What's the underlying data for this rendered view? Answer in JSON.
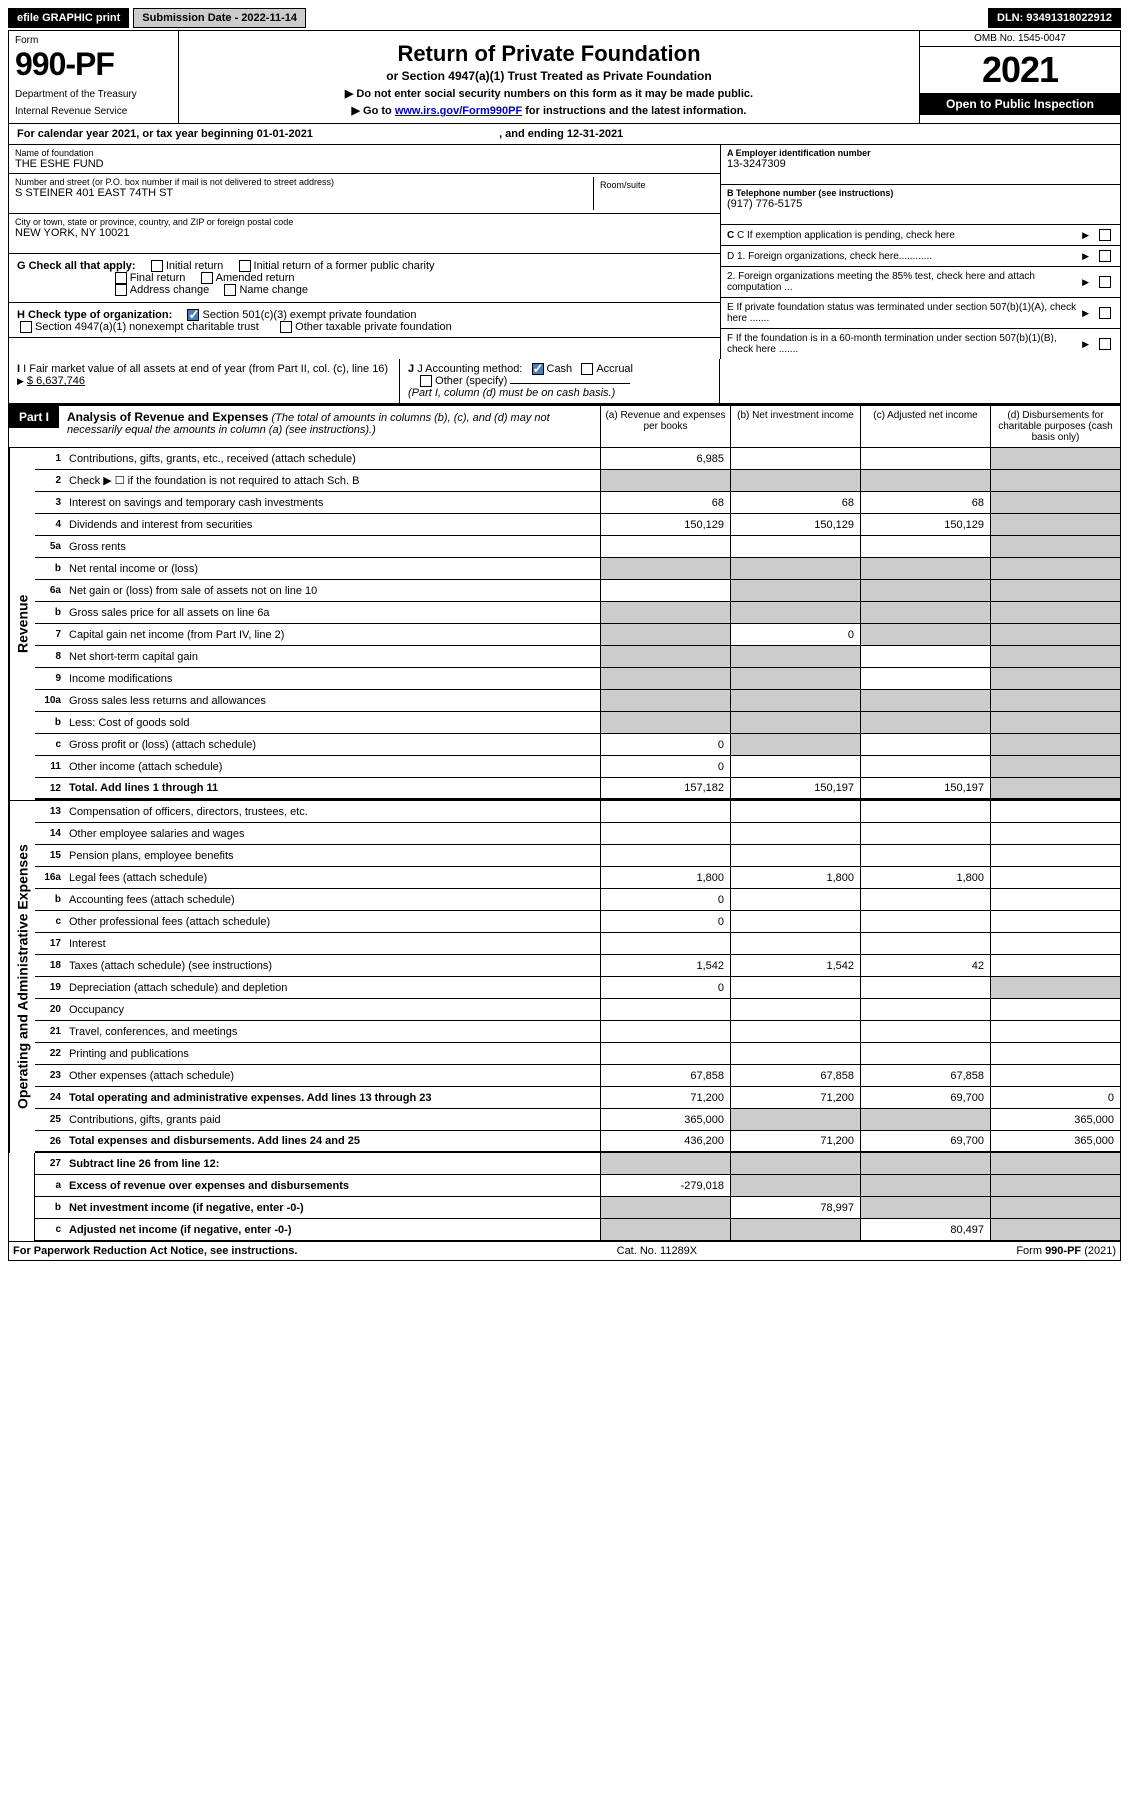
{
  "topbar": {
    "efile": "efile GRAPHIC print",
    "submission_label": "Submission Date - 2022-11-14",
    "dln": "DLN: 93491318022912"
  },
  "header": {
    "form_label": "Form",
    "form_number": "990-PF",
    "dept1": "Department of the Treasury",
    "dept2": "Internal Revenue Service",
    "title": "Return of Private Foundation",
    "subtitle": "or Section 4947(a)(1) Trust Treated as Private Foundation",
    "note1": "▶ Do not enter social security numbers on this form as it may be made public.",
    "note2_pre": "▶ Go to ",
    "note2_link": "www.irs.gov/Form990PF",
    "note2_post": " for instructions and the latest information.",
    "omb": "OMB No. 1545-0047",
    "year": "2021",
    "open_public": "Open to Public Inspection"
  },
  "calendar": {
    "pre": "For calendar year 2021, or tax year beginning ",
    "begin": "01-01-2021",
    "mid": ", and ending ",
    "end": "12-31-2021"
  },
  "entity": {
    "name_label": "Name of foundation",
    "name": "THE ESHE FUND",
    "addr_label": "Number and street (or P.O. box number if mail is not delivered to street address)",
    "addr": "S STEINER 401 EAST 74TH ST",
    "room_label": "Room/suite",
    "city_label": "City or town, state or province, country, and ZIP or foreign postal code",
    "city": "NEW YORK, NY  10021",
    "ein_label": "A Employer identification number",
    "ein": "13-3247309",
    "phone_label": "B Telephone number (see instructions)",
    "phone": "(917) 776-5175",
    "c_label": "C If exemption application is pending, check here",
    "d1": "D 1. Foreign organizations, check here............",
    "d2": "2. Foreign organizations meeting the 85% test, check here and attach computation ...",
    "e_label": "E If private foundation status was terminated under section 507(b)(1)(A), check here .......",
    "f_label": "F If the foundation is in a 60-month termination under section 507(b)(1)(B), check here .......",
    "g_label": "G Check all that apply:",
    "g_opts": [
      "Initial return",
      "Initial return of a former public charity",
      "Final return",
      "Amended return",
      "Address change",
      "Name change"
    ],
    "h_label": "H Check type of organization:",
    "h_opt1": "Section 501(c)(3) exempt private foundation",
    "h_opt2": "Section 4947(a)(1) nonexempt charitable trust",
    "h_opt3": "Other taxable private foundation",
    "i_label": "I Fair market value of all assets at end of year (from Part II, col. (c), line 16)",
    "i_val": "$  6,637,746",
    "j_label": "J Accounting method:",
    "j_cash": "Cash",
    "j_accrual": "Accrual",
    "j_other": "Other (specify)",
    "j_note": "(Part I, column (d) must be on cash basis.)"
  },
  "part1": {
    "tag": "Part I",
    "title": "Analysis of Revenue and Expenses",
    "title_note": "(The total of amounts in columns (b), (c), and (d) may not necessarily equal the amounts in column (a) (see instructions).)",
    "col_a": "(a) Revenue and expenses per books",
    "col_b": "(b) Net investment income",
    "col_c": "(c) Adjusted net income",
    "col_d": "(d) Disbursements for charitable purposes (cash basis only)",
    "revenue_label": "Revenue",
    "expenses_label": "Operating and Administrative Expenses"
  },
  "rows": [
    {
      "ln": "1",
      "desc": "Contributions, gifts, grants, etc., received (attach schedule)",
      "a": "6,985",
      "b": "",
      "c": "",
      "d": "grey"
    },
    {
      "ln": "2",
      "desc": "Check ▶ ☐ if the foundation is not required to attach Sch. B",
      "a": "grey",
      "b": "grey",
      "c": "grey",
      "d": "grey"
    },
    {
      "ln": "3",
      "desc": "Interest on savings and temporary cash investments",
      "a": "68",
      "b": "68",
      "c": "68",
      "d": "grey"
    },
    {
      "ln": "4",
      "desc": "Dividends and interest from securities",
      "a": "150,129",
      "b": "150,129",
      "c": "150,129",
      "d": "grey"
    },
    {
      "ln": "5a",
      "desc": "Gross rents",
      "a": "",
      "b": "",
      "c": "",
      "d": "grey"
    },
    {
      "ln": "b",
      "desc": "Net rental income or (loss)",
      "a": "grey",
      "b": "grey",
      "c": "grey",
      "d": "grey",
      "inline": true
    },
    {
      "ln": "6a",
      "desc": "Net gain or (loss) from sale of assets not on line 10",
      "a": "",
      "b": "grey",
      "c": "grey",
      "d": "grey"
    },
    {
      "ln": "b",
      "desc": "Gross sales price for all assets on line 6a",
      "a": "grey",
      "b": "grey",
      "c": "grey",
      "d": "grey",
      "inline": true
    },
    {
      "ln": "7",
      "desc": "Capital gain net income (from Part IV, line 2)",
      "a": "grey",
      "b": "0",
      "c": "grey",
      "d": "grey"
    },
    {
      "ln": "8",
      "desc": "Net short-term capital gain",
      "a": "grey",
      "b": "grey",
      "c": "",
      "d": "grey"
    },
    {
      "ln": "9",
      "desc": "Income modifications",
      "a": "grey",
      "b": "grey",
      "c": "",
      "d": "grey"
    },
    {
      "ln": "10a",
      "desc": "Gross sales less returns and allowances",
      "a": "grey",
      "b": "grey",
      "c": "grey",
      "d": "grey",
      "inline": true
    },
    {
      "ln": "b",
      "desc": "Less: Cost of goods sold",
      "a": "grey",
      "b": "grey",
      "c": "grey",
      "d": "grey",
      "inline": true
    },
    {
      "ln": "c",
      "desc": "Gross profit or (loss) (attach schedule)",
      "a": "0",
      "b": "grey",
      "c": "",
      "d": "grey"
    },
    {
      "ln": "11",
      "desc": "Other income (attach schedule)",
      "a": "0",
      "b": "",
      "c": "",
      "d": "grey"
    },
    {
      "ln": "12",
      "desc": "Total. Add lines 1 through 11",
      "a": "157,182",
      "b": "150,197",
      "c": "150,197",
      "d": "grey",
      "bold": true,
      "thick": true
    }
  ],
  "exp_rows": [
    {
      "ln": "13",
      "desc": "Compensation of officers, directors, trustees, etc.",
      "a": "",
      "b": "",
      "c": "",
      "d": ""
    },
    {
      "ln": "14",
      "desc": "Other employee salaries and wages",
      "a": "",
      "b": "",
      "c": "",
      "d": ""
    },
    {
      "ln": "15",
      "desc": "Pension plans, employee benefits",
      "a": "",
      "b": "",
      "c": "",
      "d": ""
    },
    {
      "ln": "16a",
      "desc": "Legal fees (attach schedule)",
      "a": "1,800",
      "b": "1,800",
      "c": "1,800",
      "d": ""
    },
    {
      "ln": "b",
      "desc": "Accounting fees (attach schedule)",
      "a": "0",
      "b": "",
      "c": "",
      "d": ""
    },
    {
      "ln": "c",
      "desc": "Other professional fees (attach schedule)",
      "a": "0",
      "b": "",
      "c": "",
      "d": ""
    },
    {
      "ln": "17",
      "desc": "Interest",
      "a": "",
      "b": "",
      "c": "",
      "d": ""
    },
    {
      "ln": "18",
      "desc": "Taxes (attach schedule) (see instructions)",
      "a": "1,542",
      "b": "1,542",
      "c": "42",
      "d": ""
    },
    {
      "ln": "19",
      "desc": "Depreciation (attach schedule) and depletion",
      "a": "0",
      "b": "",
      "c": "",
      "d": "grey"
    },
    {
      "ln": "20",
      "desc": "Occupancy",
      "a": "",
      "b": "",
      "c": "",
      "d": ""
    },
    {
      "ln": "21",
      "desc": "Travel, conferences, and meetings",
      "a": "",
      "b": "",
      "c": "",
      "d": ""
    },
    {
      "ln": "22",
      "desc": "Printing and publications",
      "a": "",
      "b": "",
      "c": "",
      "d": ""
    },
    {
      "ln": "23",
      "desc": "Other expenses (attach schedule)",
      "a": "67,858",
      "b": "67,858",
      "c": "67,858",
      "d": ""
    },
    {
      "ln": "24",
      "desc": "Total operating and administrative expenses. Add lines 13 through 23",
      "a": "71,200",
      "b": "71,200",
      "c": "69,700",
      "d": "0",
      "bold": true
    },
    {
      "ln": "25",
      "desc": "Contributions, gifts, grants paid",
      "a": "365,000",
      "b": "grey",
      "c": "grey",
      "d": "365,000"
    },
    {
      "ln": "26",
      "desc": "Total expenses and disbursements. Add lines 24 and 25",
      "a": "436,200",
      "b": "71,200",
      "c": "69,700",
      "d": "365,000",
      "bold": true,
      "thick": true
    }
  ],
  "net_rows": [
    {
      "ln": "27",
      "desc": "Subtract line 26 from line 12:",
      "a": "grey",
      "b": "grey",
      "c": "grey",
      "d": "grey",
      "bold": true
    },
    {
      "ln": "a",
      "desc": "Excess of revenue over expenses and disbursements",
      "a": "-279,018",
      "b": "grey",
      "c": "grey",
      "d": "grey",
      "bold": true
    },
    {
      "ln": "b",
      "desc": "Net investment income (if negative, enter -0-)",
      "a": "grey",
      "b": "78,997",
      "c": "grey",
      "d": "grey",
      "bold": true
    },
    {
      "ln": "c",
      "desc": "Adjusted net income (if negative, enter -0-)",
      "a": "grey",
      "b": "grey",
      "c": "80,497",
      "d": "grey",
      "bold": true
    }
  ],
  "footer": {
    "left": "For Paperwork Reduction Act Notice, see instructions.",
    "mid": "Cat. No. 11289X",
    "right": "Form 990-PF (2021)"
  },
  "colors": {
    "black": "#000000",
    "grey": "#cccccc",
    "link": "#0000cc",
    "check": "#4a7ebb"
  }
}
